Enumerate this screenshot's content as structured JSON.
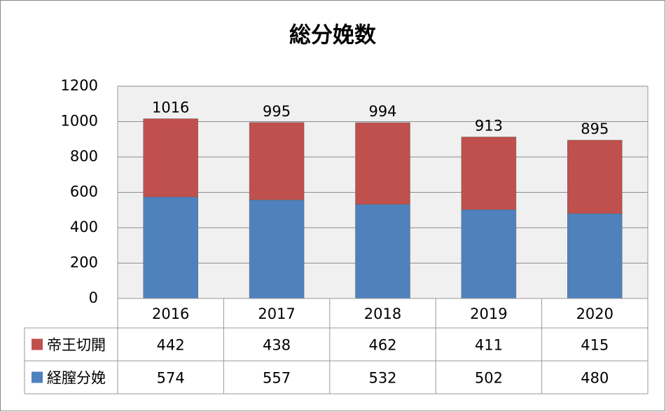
{
  "chart_data": {
    "type": "stacked_bar",
    "title": "総分娩数",
    "categories": [
      "2016",
      "2017",
      "2018",
      "2019",
      "2020"
    ],
    "series": [
      {
        "name": "帝王切開",
        "color": "#c0504d",
        "values": [
          442,
          438,
          462,
          411,
          415
        ]
      },
      {
        "name": "経膣分娩",
        "color": "#4f81bd",
        "values": [
          574,
          557,
          532,
          502,
          480
        ]
      }
    ],
    "totals": [
      1016,
      995,
      994,
      913,
      895
    ],
    "ylim": [
      0,
      1200
    ],
    "yticks": [
      0,
      200,
      400,
      600,
      800,
      1000,
      1200
    ],
    "grid": true,
    "data_table": true
  }
}
